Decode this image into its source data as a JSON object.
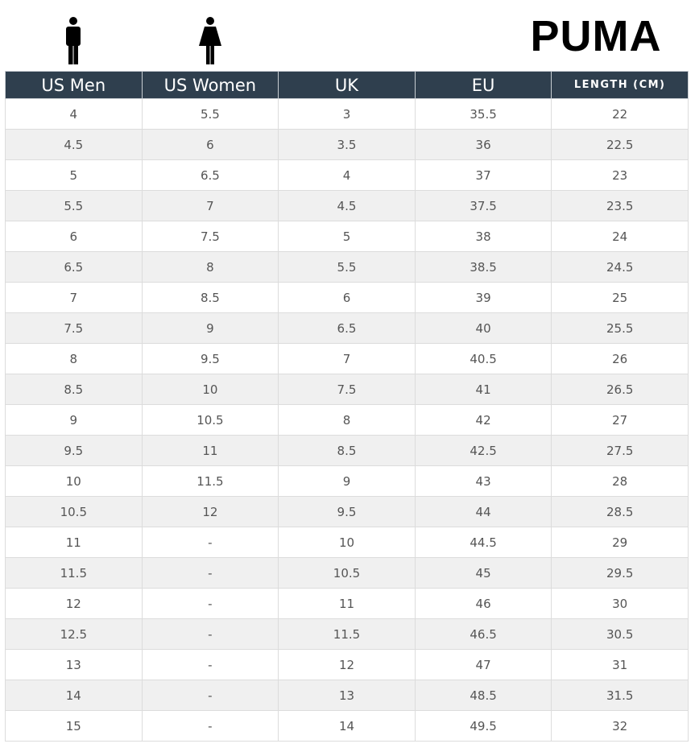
{
  "header": {
    "brand": "PUMA"
  },
  "table": {
    "columns": [
      "US Men",
      "US Women",
      "UK",
      "EU",
      "LENGTH (CM)"
    ],
    "rows": [
      [
        "4",
        "5.5",
        "3",
        "35.5",
        "22"
      ],
      [
        "4.5",
        "6",
        "3.5",
        "36",
        "22.5"
      ],
      [
        "5",
        "6.5",
        "4",
        "37",
        "23"
      ],
      [
        "5.5",
        "7",
        "4.5",
        "37.5",
        "23.5"
      ],
      [
        "6",
        "7.5",
        "5",
        "38",
        "24"
      ],
      [
        "6.5",
        "8",
        "5.5",
        "38.5",
        "24.5"
      ],
      [
        "7",
        "8.5",
        "6",
        "39",
        "25"
      ],
      [
        "7.5",
        "9",
        "6.5",
        "40",
        "25.5"
      ],
      [
        "8",
        "9.5",
        "7",
        "40.5",
        "26"
      ],
      [
        "8.5",
        "10",
        "7.5",
        "41",
        "26.5"
      ],
      [
        "9",
        "10.5",
        "8",
        "42",
        "27"
      ],
      [
        "9.5",
        "11",
        "8.5",
        "42.5",
        "27.5"
      ],
      [
        "10",
        "11.5",
        "9",
        "43",
        "28"
      ],
      [
        "10.5",
        "12",
        "9.5",
        "44",
        "28.5"
      ],
      [
        "11",
        "-",
        "10",
        "44.5",
        "29"
      ],
      [
        "11.5",
        "-",
        "10.5",
        "45",
        "29.5"
      ],
      [
        "12",
        "-",
        "11",
        "46",
        "30"
      ],
      [
        "12.5",
        "-",
        "11.5",
        "46.5",
        "30.5"
      ],
      [
        "13",
        "-",
        "12",
        "47",
        "31"
      ],
      [
        "14",
        "-",
        "13",
        "48.5",
        "31.5"
      ],
      [
        "15",
        "-",
        "14",
        "49.5",
        "32"
      ]
    ]
  }
}
